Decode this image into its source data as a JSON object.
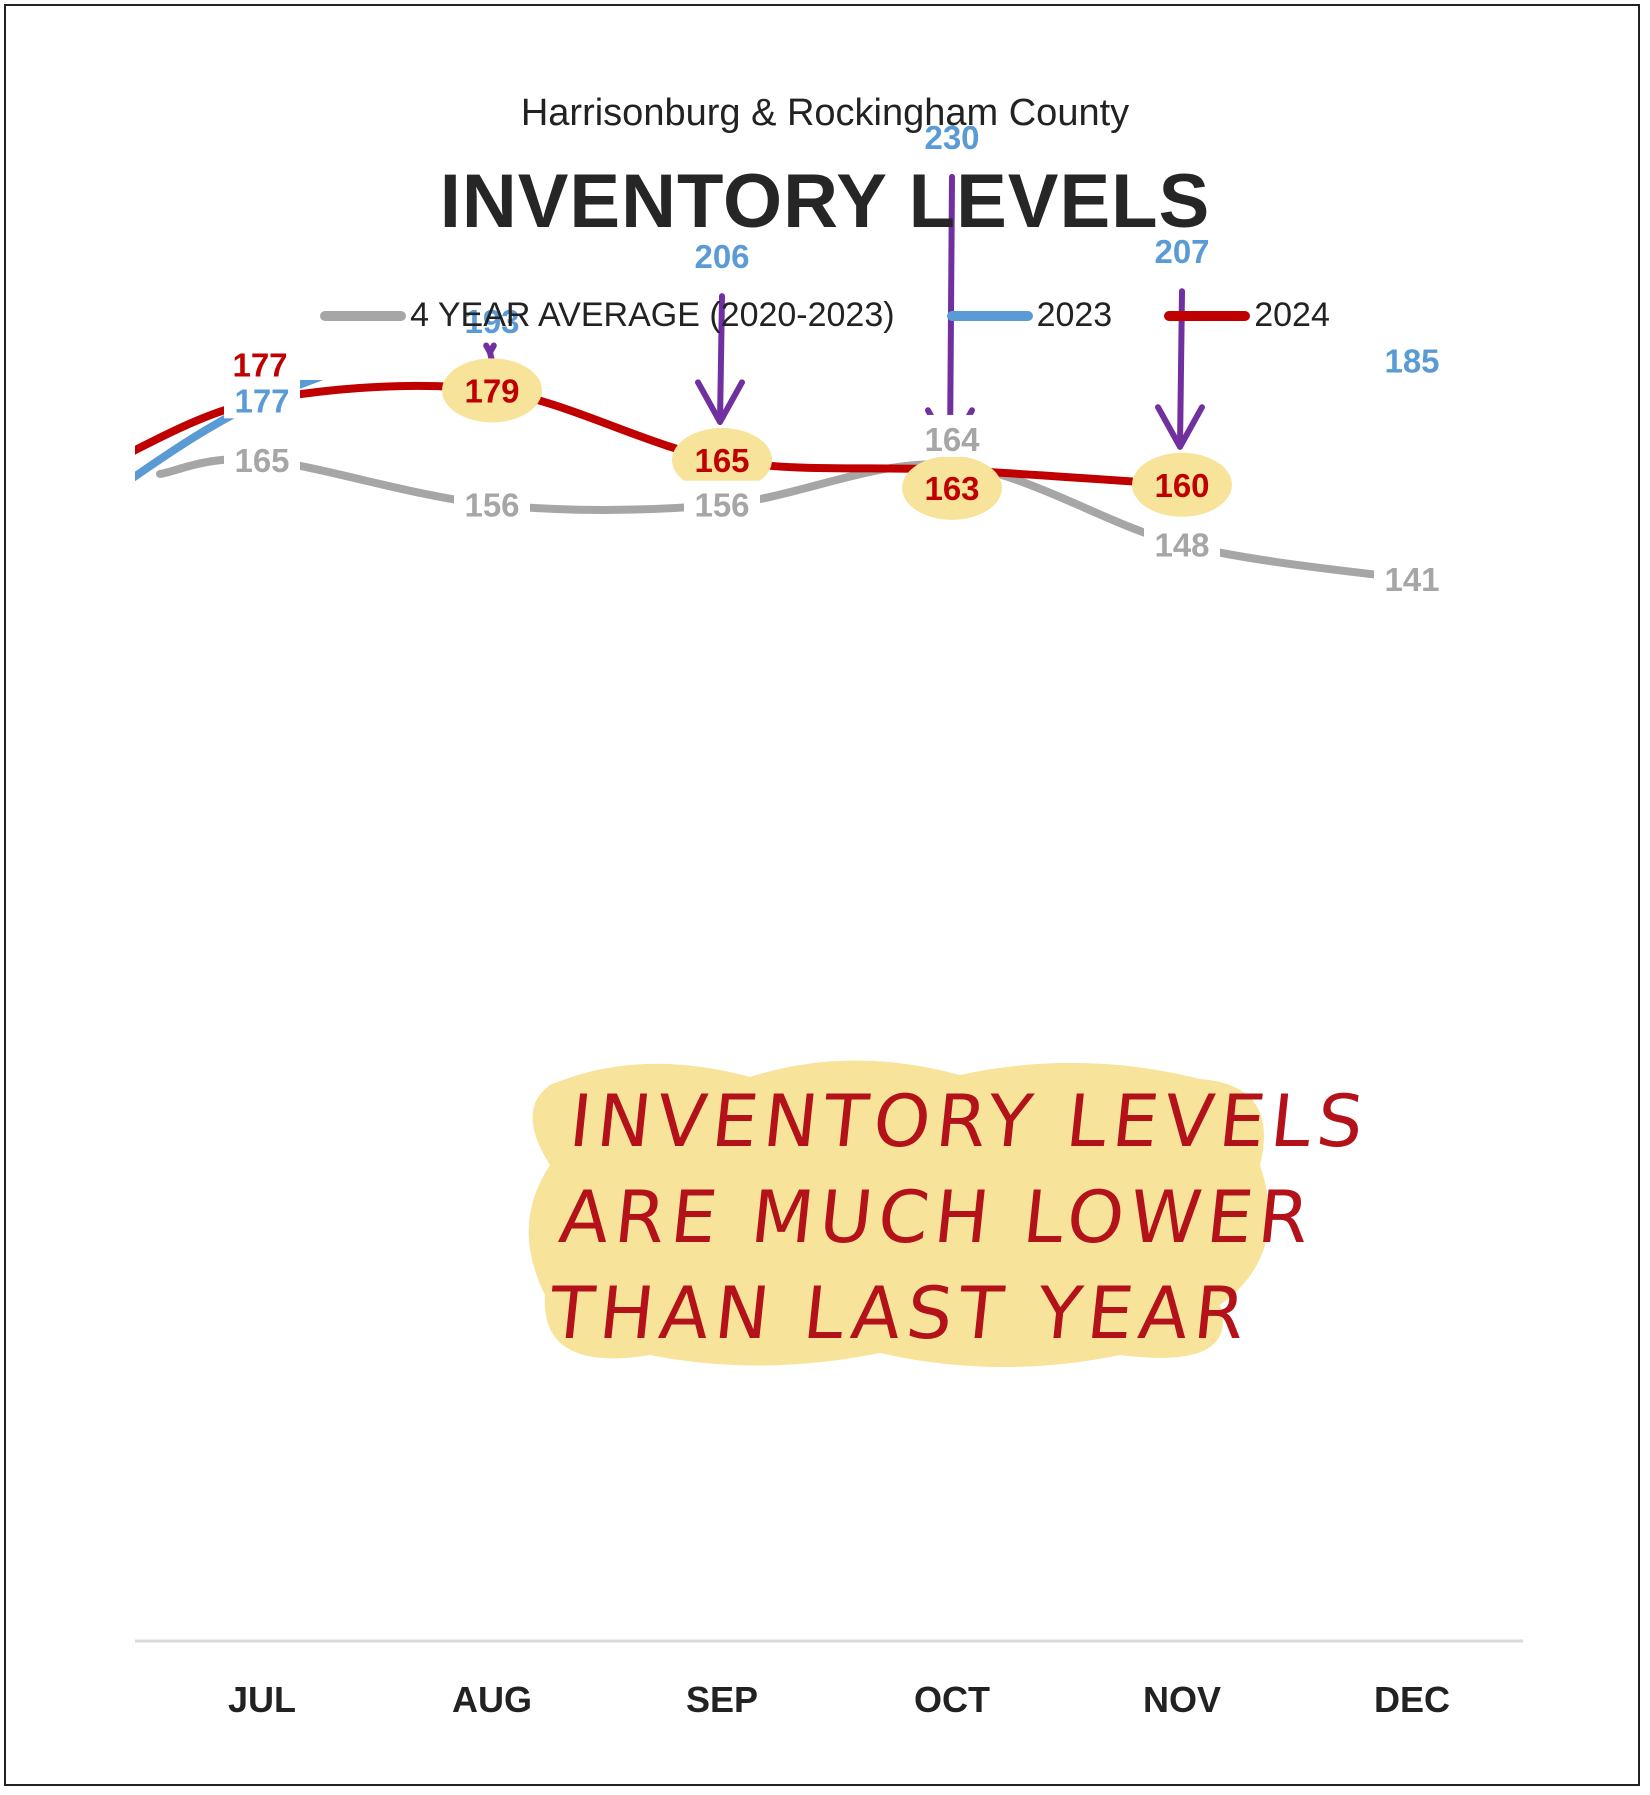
{
  "header": {
    "subtitle": "Harrisonburg & Rockingham County",
    "title": "INVENTORY LEVELS"
  },
  "legend": [
    {
      "label": "4 YEAR AVERAGE (2020-2023)",
      "color": "#a6a6a6"
    },
    {
      "label": "2023",
      "color": "#5b9bd5"
    },
    {
      "label": "2024",
      "color": "#c00000"
    }
  ],
  "annotation": {
    "lines": [
      "INVENTORY LEVELS",
      "ARE MUCH LOWER",
      "THAN LAST YEAR"
    ],
    "text_color": "#b3121a",
    "highlight_color": "#f7e49a"
  },
  "chart_data": {
    "type": "line",
    "title": "INVENTORY LEVELS",
    "subtitle": "Harrisonburg & Rockingham County",
    "categories": [
      "JUL",
      "AUG",
      "SEP",
      "OCT",
      "NOV",
      "DEC"
    ],
    "series": [
      {
        "name": "4 YEAR AVERAGE (2020-2023)",
        "color": "#a6a6a6",
        "values": [
          165,
          156,
          156,
          164,
          148,
          141
        ]
      },
      {
        "name": "2023",
        "color": "#5b9bd5",
        "values": [
          177,
          193,
          206,
          230,
          207,
          185
        ]
      },
      {
        "name": "2024",
        "color": "#c00000",
        "values": [
          177,
          179,
          165,
          163,
          160,
          null
        ]
      }
    ],
    "highlighted_points": {
      "series": "2024",
      "categories": [
        "AUG",
        "SEP",
        "OCT",
        "NOV"
      ]
    },
    "arrows": {
      "color": "#7030a0",
      "categories": [
        "AUG",
        "SEP",
        "OCT",
        "NOV"
      ]
    },
    "grid": false,
    "legend_position": "top"
  }
}
